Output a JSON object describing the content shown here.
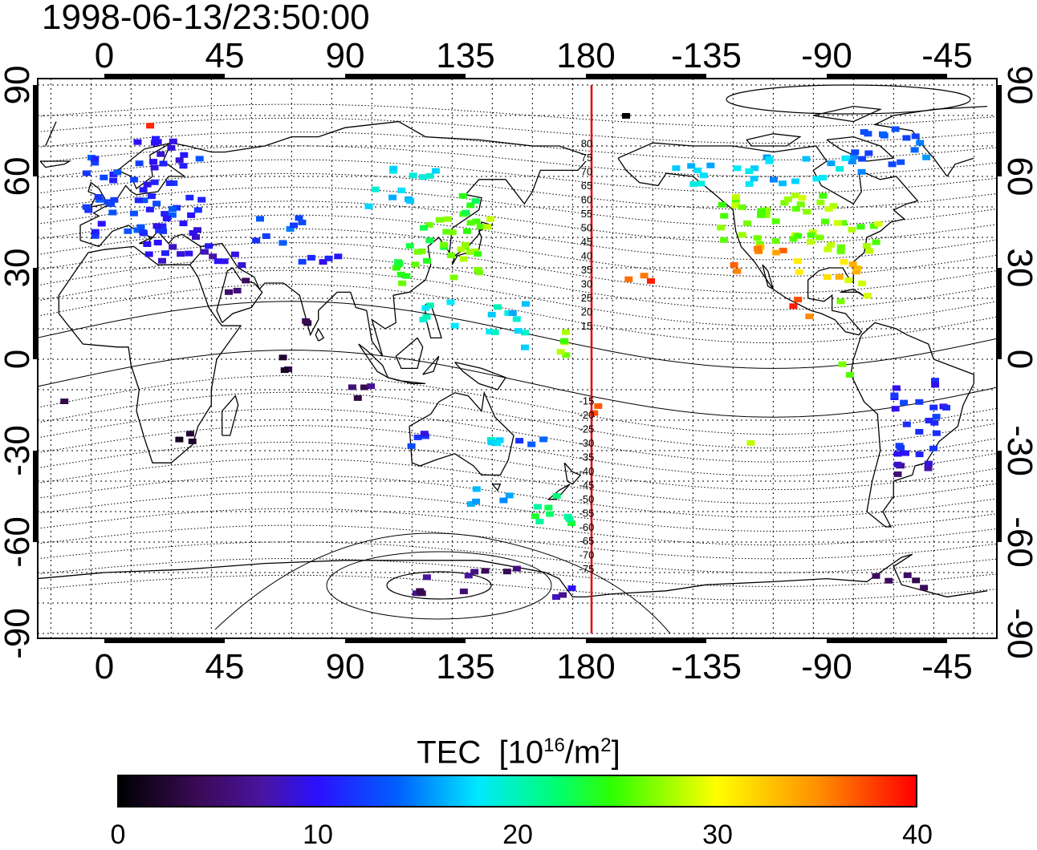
{
  "timestamp": "1998-06-13/23:50:00",
  "top_axis_ticks": [
    "0",
    "45",
    "90",
    "135",
    "180",
    "-135",
    "-90",
    "-45"
  ],
  "bottom_axis_ticks": [
    "0",
    "45",
    "90",
    "135",
    "180",
    "-135",
    "-90",
    "-45"
  ],
  "left_axis_ticks": [
    "90",
    "60",
    "30",
    "0",
    "-30",
    "-60",
    "-90"
  ],
  "right_axis_ticks": [
    "90",
    "60",
    "30",
    "0",
    "-30",
    "-60",
    "-90"
  ],
  "latitude_contour_labels": [
    "80",
    "75",
    "70",
    "65",
    "60",
    "55",
    "50",
    "45",
    "40",
    "35",
    "30",
    "25",
    "20",
    "15",
    "-15",
    "-20",
    "-25",
    "-30",
    "-35",
    "-40",
    "-45",
    "-50",
    "-55",
    "-60",
    "-65",
    "-70",
    "-75"
  ],
  "colorbar": {
    "title": "TEC",
    "units_prefix": "[10",
    "units_exp": "16",
    "units_mid": "/m",
    "units_exp2": "2",
    "units_suffix": "]",
    "ticks": [
      "0",
      "10",
      "20",
      "30",
      "40"
    ],
    "range": [
      0,
      40
    ]
  },
  "colors": {
    "meridian_line": "#e00000",
    "frame": "#000000"
  }
}
